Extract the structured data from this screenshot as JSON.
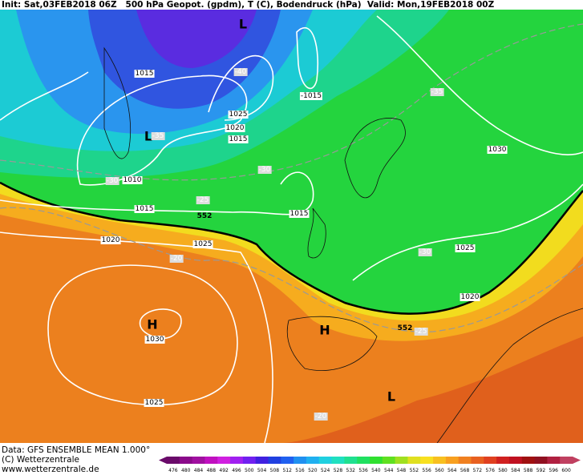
{
  "header": {
    "title": "Init: Sat,03FEB2018 06Z   500 hPa Geopot. (gpdm), T (C), Bodendruck (hPa)  Valid: Mon,19FEB2018 00Z"
  },
  "footer": {
    "data_source": "Data: GFS ENSEMBLE MEAN 1.000°",
    "copyright": "(C) Wetterzentrale",
    "website": "www.wetterzentrale.de"
  },
  "colorbar": {
    "labels": [
      "476",
      "480",
      "484",
      "488",
      "492",
      "496",
      "500",
      "504",
      "508",
      "512",
      "516",
      "520",
      "524",
      "528",
      "532",
      "536",
      "540",
      "544",
      "548",
      "552",
      "556",
      "560",
      "564",
      "568",
      "572",
      "576",
      "580",
      "584",
      "588",
      "592",
      "596",
      "600"
    ],
    "colors": [
      "#6a0a6a",
      "#8a0a8a",
      "#a010a0",
      "#c010c0",
      "#d020e0",
      "#a020f0",
      "#7020f0",
      "#4020e0",
      "#2040e0",
      "#2060f0",
      "#2090f0",
      "#20b0f0",
      "#20d0e0",
      "#20e0c0",
      "#20e090",
      "#20e060",
      "#30e030",
      "#60e020",
      "#a0e020",
      "#e0e020",
      "#f8e020",
      "#f8c020",
      "#f8a020",
      "#f08020",
      "#e86020",
      "#e04020",
      "#d02020",
      "#c01020",
      "#a01010",
      "#901020",
      "#b02040",
      "#c04060"
    ]
  },
  "map": {
    "centers": [
      "L",
      "L",
      "H",
      "H",
      "L"
    ],
    "isobars": [
      "1015",
      "1025",
      "1020",
      "1015",
      "1010",
      "1015",
      "1020",
      "1025",
      "1030",
      "1025",
      "-1015",
      "1015",
      "1030",
      "1025",
      "1020"
    ],
    "temperatures": [
      "-40",
      "-35",
      "-30",
      "-30",
      "-25",
      "-20",
      "-35",
      "-30",
      "-25",
      "-20"
    ],
    "heights": [
      "552",
      "552"
    ]
  }
}
